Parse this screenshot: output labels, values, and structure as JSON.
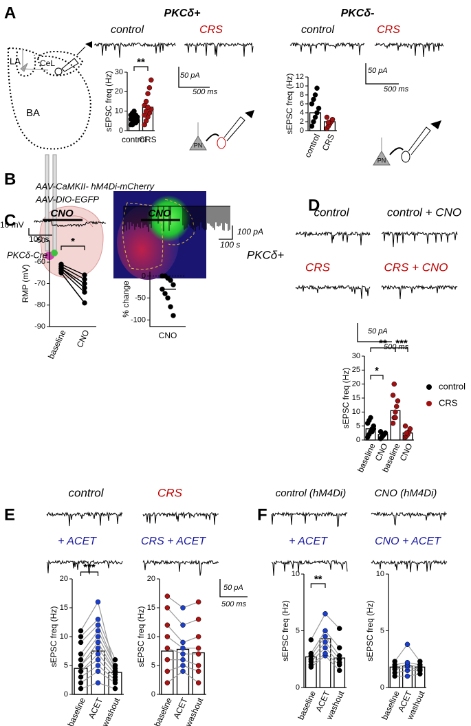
{
  "panel_labels": [
    "A",
    "B",
    "C",
    "D",
    "E",
    "F"
  ],
  "texts": [
    {
      "text": "PKCδ+",
      "color": "#000"
    },
    {
      "text": "PKCδ-",
      "color": "#000"
    },
    {
      "text": "control",
      "color": "#000"
    },
    {
      "text": "CRS",
      "color": "#c00000"
    },
    {
      "text": "control",
      "color": "#000"
    },
    {
      "text": "CRS",
      "color": "#c00000"
    },
    {
      "text": "50 pA",
      "color": "#000"
    },
    {
      "text": "500 ms",
      "color": "#000"
    },
    {
      "text": "50 pA",
      "color": "#000"
    },
    {
      "text": "500 ms",
      "color": "#000"
    },
    {
      "text": "LA",
      "color": "#000"
    },
    {
      "text": "CeL",
      "color": "#000"
    },
    {
      "text": "BA",
      "color": "#000"
    },
    {
      "text": "PN",
      "color": "#000"
    },
    {
      "text": "PN",
      "color": "#000"
    },
    {
      "text": "AAV-CaMKII- hM4Di-mCherry",
      "color": "#000"
    },
    {
      "text": "AAV-DIO-EGFP",
      "color": "#000"
    },
    {
      "text": "PKCδ-Cre",
      "color": "#000"
    },
    {
      "text": "CNO",
      "color": "#000"
    },
    {
      "text": "CNO",
      "color": "#000"
    },
    {
      "text": "10 mV",
      "color": "#000"
    },
    {
      "text": "100 s",
      "color": "#000"
    },
    {
      "text": "100 pA",
      "color": "#000"
    },
    {
      "text": "100 s",
      "color": "#000"
    },
    {
      "text": "control",
      "color": "#000"
    },
    {
      "text": "control + CNO",
      "color": "#000"
    },
    {
      "text": "CRS",
      "color": "#c00000"
    },
    {
      "text": "CRS + CNO",
      "color": "#c00000"
    },
    {
      "text": "PKCδ+",
      "color": "#000"
    },
    {
      "text": "50 pA",
      "color": "#000"
    },
    {
      "text": "500 ms",
      "color": "#000"
    },
    {
      "text": "control",
      "color": "#000"
    },
    {
      "text": "CRS",
      "color": "#c00000"
    },
    {
      "text": "+ ACET",
      "color": "#1a1aa0"
    },
    {
      "text": "CRS + ACET",
      "color": "#1a1aa0"
    },
    {
      "text": "50 pA",
      "color": "#000"
    },
    {
      "text": "500 ms",
      "color": "#000"
    },
    {
      "text": "control (hM4Di)",
      "color": "#000"
    },
    {
      "text": "CNO (hM4Di)",
      "color": "#000"
    },
    {
      "text": "+ ACET",
      "color": "#1a1aa0"
    },
    {
      "text": "CNO + ACET",
      "color": "#1a1aa0"
    }
  ],
  "plots": [
    {
      "ylabel": "sEPSC freq (Hz)",
      "ylim": [
        0,
        30
      ],
      "yticks": [
        0,
        10,
        20,
        30
      ],
      "categories": [
        "control",
        "CRS"
      ],
      "bars": [
        6,
        12
      ],
      "point_colors": [
        "#000",
        "#a01010"
      ],
      "paired": false,
      "significance": [
        "**"
      ],
      "points": [
        [
          3,
          4,
          5,
          6,
          7,
          8,
          9,
          10,
          4,
          5,
          6,
          3,
          7,
          8,
          5
        ],
        [
          3,
          5,
          7,
          9,
          11,
          13,
          15,
          19,
          22,
          26,
          8,
          10,
          12
        ]
      ]
    },
    {
      "ylabel": "sEPSC freq (Hz)",
      "ylim": [
        0,
        12
      ],
      "yticks": [
        0,
        2,
        4,
        6,
        8,
        10,
        12
      ],
      "categories": [
        "control",
        "CRS"
      ],
      "bars": [
        4,
        2
      ],
      "point_colors": [
        "#000",
        "#a01010"
      ],
      "paired": false,
      "significance": [],
      "points": [
        [
          1,
          2,
          3,
          4,
          5,
          6,
          7,
          8,
          9.5
        ],
        [
          0.5,
          1,
          1.5,
          2,
          2.5,
          3,
          1.8
        ]
      ]
    },
    {
      "ylabel": "RMP (mV)",
      "ylim": [
        -90,
        -50
      ],
      "yticks": [
        -90,
        -80,
        -70,
        -60,
        -50
      ],
      "categories": [
        "baseline",
        "CNO"
      ],
      "point_colors": [
        "#000",
        "#000"
      ],
      "paired": true,
      "significance": [
        "*"
      ],
      "points": [
        [
          -61,
          -62,
          -63,
          -63,
          -64,
          -65
        ],
        [
          -66,
          -68,
          -70,
          -72,
          -74,
          -79
        ]
      ]
    },
    {
      "ylabel": "% change",
      "ylim": [
        -115,
        10
      ],
      "yticks": [
        -100,
        -50,
        0
      ],
      "categories": [
        "CNO"
      ],
      "means": [
        -30
      ],
      "point_colors": [
        "#000"
      ],
      "paired": false,
      "significance": [],
      "zero_line": true,
      "points": [
        [
          0,
          0,
          -5,
          -10,
          -20,
          -30,
          -40,
          -50,
          -70,
          -90
        ]
      ]
    },
    {
      "ylabel": "sEPSC freq (Hz)",
      "ylim": [
        0,
        30
      ],
      "yticks": [
        0,
        5,
        10,
        15,
        20,
        25,
        30
      ],
      "categories": [
        "baseline",
        "CNO",
        "baseline",
        "CNO"
      ],
      "bars": [
        4,
        2,
        10.5,
        2.5
      ],
      "point_colors": [
        "#000",
        "#000",
        "#a01010",
        "#a01010"
      ],
      "paired": false,
      "significance": [
        "**",
        "*",
        "***"
      ],
      "legend": [
        {
          "name": "control",
          "color": "#000"
        },
        {
          "name": "CRS",
          "color": "#a01010"
        }
      ],
      "points": [
        [
          1,
          2,
          3,
          4,
          5,
          6,
          7,
          8,
          3,
          4
        ],
        [
          0.5,
          1,
          1.5,
          2,
          2.5,
          3,
          1,
          2
        ],
        [
          6,
          8,
          10,
          12,
          14,
          16,
          20,
          8
        ],
        [
          1,
          1.5,
          2,
          3,
          4,
          5,
          2.5
        ]
      ]
    },
    {
      "ylabel": "sEPSC freq (Hz)",
      "ylim": [
        0,
        20
      ],
      "yticks": [
        0,
        5,
        10,
        15,
        20
      ],
      "categories": [
        "baseline",
        "ACET",
        "washout"
      ],
      "bars": [
        4.5,
        7.5,
        3.8
      ],
      "point_colors": [
        "#000",
        "#1a3fd0",
        "#000"
      ],
      "paired": true,
      "significance": [
        "***"
      ],
      "points": [
        [
          1,
          2,
          3,
          4,
          4,
          5,
          5,
          6,
          7,
          9,
          10,
          11
        ],
        [
          2,
          4,
          5,
          6,
          7,
          8,
          9,
          10,
          11,
          12,
          13,
          16
        ],
        [
          1,
          2,
          2.5,
          3,
          3.5,
          4,
          4,
          4.5,
          5,
          5,
          6,
          4
        ]
      ]
    },
    {
      "ylabel": "sEPSC freq (Hz)",
      "ylim": [
        0,
        20
      ],
      "yticks": [
        0,
        5,
        10,
        15,
        20
      ],
      "categories": [
        "baseline",
        "ACET",
        "washout"
      ],
      "bars": [
        7.5,
        7.8,
        7.2
      ],
      "point_colors": [
        "#b01010",
        "#1a3fd0",
        "#b01010"
      ],
      "paired": true,
      "significance": [],
      "points": [
        [
          2,
          4,
          6,
          8,
          10,
          12,
          15,
          17
        ],
        [
          4,
          5,
          6,
          7,
          8,
          9,
          12,
          15
        ],
        [
          2,
          4,
          5,
          7,
          8,
          10,
          13,
          16
        ]
      ]
    },
    {
      "ylabel": "sEPSC freq (Hz)",
      "ylim": [
        0,
        10
      ],
      "yticks": [
        0,
        5,
        10
      ],
      "categories": [
        "baseline",
        "ACET",
        "washout"
      ],
      "bars": [
        2.7,
        4.3,
        2.6
      ],
      "point_colors": [
        "#000",
        "#1a3fd0",
        "#000"
      ],
      "paired": true,
      "significance": [
        "**"
      ],
      "points": [
        [
          1.8,
          2,
          2.3,
          2.5,
          2.8,
          3,
          4.2
        ],
        [
          2.8,
          3,
          3.5,
          4,
          4.5,
          5,
          6.5
        ],
        [
          1.5,
          2,
          2.2,
          2.5,
          2.8,
          3.5,
          5.2
        ]
      ]
    },
    {
      "ylabel": "sEPSC freq (Hz)",
      "ylim": [
        0,
        10
      ],
      "yticks": [
        0,
        5,
        10
      ],
      "categories": [
        "baseline",
        "ACET",
        "washout"
      ],
      "bars": [
        1.8,
        1.9,
        1.8
      ],
      "point_colors": [
        "#000",
        "#1a3fd0",
        "#000"
      ],
      "paired": true,
      "significance": [],
      "points": [
        [
          1,
          1.3,
          1.6,
          1.8,
          2,
          2.3
        ],
        [
          1,
          1.5,
          1.8,
          2,
          2.2,
          3.8
        ],
        [
          1.2,
          1.5,
          1.6,
          1.8,
          2,
          2.3
        ]
      ]
    }
  ]
}
